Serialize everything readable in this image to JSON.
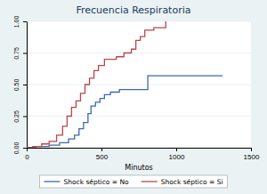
{
  "chart_data": {
    "type": "line",
    "title": "Frecuencia Respiratoria",
    "x_label": "Minutos",
    "line_style": "step",
    "grid": true,
    "legend": "bottom",
    "xlim": [
      0,
      1500
    ],
    "xticks": [
      0,
      500,
      1000,
      1500
    ],
    "ylim": [
      0,
      1
    ],
    "yticks": [
      {
        "value": 0,
        "label": "0.00"
      },
      {
        "value": 0.25,
        "label": "0.25"
      },
      {
        "value": 0.5,
        "label": "0.50"
      },
      {
        "value": 0.75,
        "label": "0.75"
      },
      {
        "value": 1,
        "label": "1.00"
      }
    ],
    "series": [
      {
        "name": "Shock séptico = No",
        "color": "#3d6aa8",
        "x": [
          0,
          60,
          150,
          220,
          280,
          320,
          350,
          380,
          410,
          430,
          460,
          490,
          520,
          560,
          620,
          810,
          1310
        ],
        "values": [
          0,
          0.01,
          0.02,
          0.04,
          0.07,
          0.1,
          0.15,
          0.2,
          0.27,
          0.33,
          0.36,
          0.39,
          0.42,
          0.44,
          0.46,
          0.57,
          0.57
        ]
      },
      {
        "name": "Shock séptico = Si",
        "color": "#b8474d",
        "x": [
          0,
          40,
          100,
          150,
          200,
          240,
          270,
          300,
          330,
          360,
          390,
          420,
          450,
          480,
          520,
          600,
          650,
          700,
          730,
          760,
          790,
          850,
          930
        ],
        "values": [
          0,
          0.01,
          0.03,
          0.05,
          0.1,
          0.17,
          0.25,
          0.32,
          0.37,
          0.43,
          0.5,
          0.55,
          0.61,
          0.65,
          0.7,
          0.72,
          0.75,
          0.78,
          0.85,
          0.88,
          0.93,
          0.95,
          1
        ]
      }
    ]
  }
}
